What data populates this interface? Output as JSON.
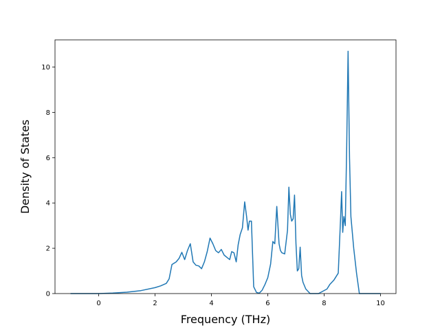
{
  "chart_data": {
    "type": "line",
    "title": "",
    "xlabel": "Frequency (THz)",
    "ylabel": "Density of States",
    "xlim": [
      -1.55,
      10.55
    ],
    "ylim": [
      0,
      11.2
    ],
    "xticks": [
      0,
      2,
      4,
      6,
      8,
      10
    ],
    "yticks": [
      0,
      2,
      4,
      6,
      8,
      10
    ],
    "grid": false,
    "series": [
      {
        "color": "#1f77b4",
        "x": [
          -1.0,
          -0.5,
          0.0,
          0.5,
          1.0,
          1.5,
          2.0,
          2.2,
          2.4,
          2.5,
          2.6,
          2.75,
          2.85,
          2.95,
          3.05,
          3.15,
          3.25,
          3.35,
          3.45,
          3.55,
          3.65,
          3.75,
          3.85,
          3.95,
          4.05,
          4.15,
          4.25,
          4.35,
          4.45,
          4.55,
          4.65,
          4.72,
          4.8,
          4.88,
          4.95,
          5.02,
          5.1,
          5.18,
          5.25,
          5.3,
          5.35,
          5.42,
          5.5,
          5.6,
          5.7,
          5.8,
          5.9,
          6.0,
          6.1,
          6.18,
          6.25,
          6.32,
          6.4,
          6.45,
          6.5,
          6.6,
          6.7,
          6.75,
          6.8,
          6.85,
          6.9,
          6.95,
          7.0,
          7.05,
          7.1,
          7.15,
          7.2,
          7.25,
          7.35,
          7.5,
          7.8,
          8.1,
          8.2,
          8.35,
          8.5,
          8.58,
          8.62,
          8.66,
          8.7,
          8.75,
          8.8,
          8.85,
          8.9,
          8.95,
          9.05,
          9.15,
          9.25,
          9.5,
          10.0
        ],
        "y": [
          0,
          0,
          0,
          0.02,
          0.06,
          0.13,
          0.26,
          0.34,
          0.45,
          0.65,
          1.28,
          1.4,
          1.55,
          1.82,
          1.5,
          1.9,
          2.2,
          1.4,
          1.25,
          1.22,
          1.1,
          1.4,
          1.85,
          2.45,
          2.2,
          1.9,
          1.8,
          1.95,
          1.7,
          1.6,
          1.5,
          1.85,
          1.8,
          1.4,
          2.15,
          2.6,
          2.9,
          4.05,
          3.4,
          2.8,
          3.2,
          3.2,
          0.3,
          0.05,
          0.02,
          0.15,
          0.4,
          0.7,
          1.3,
          2.3,
          2.2,
          3.85,
          2.2,
          1.9,
          1.8,
          1.75,
          2.8,
          4.7,
          3.5,
          3.2,
          3.3,
          4.35,
          2.2,
          1.0,
          1.1,
          2.05,
          0.8,
          0.5,
          0.2,
          0,
          0,
          0.2,
          0.4,
          0.6,
          0.9,
          3.2,
          4.5,
          2.7,
          3.4,
          3.0,
          6.5,
          10.7,
          6.0,
          3.4,
          2.0,
          0.9,
          0,
          0,
          0
        ]
      }
    ]
  }
}
